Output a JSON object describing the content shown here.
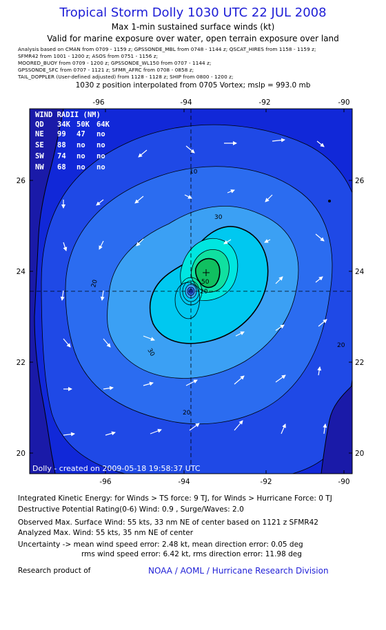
{
  "title": "Tropical Storm Dolly 1030 UTC 22 JUL 2008",
  "subtitle1": "Max 1-min sustained surface winds (kt)",
  "subtitle2": "Valid for marine exposure over water, open terrain exposure over land",
  "analysis_lines": [
    "Analysis based on  CMAN from 0709 - 1159 z;  GPSSONDE_MBL from 0748 - 1144 z;  QSCAT_HIRES from 1158 - 1159 z;",
    "SFMR42 from 1001 - 1200 z;  ASOS from 0751 - 1156 z;",
    "MOORED_BUOY from 0709 - 1200 z;  GPSSONDE_WL150 from 0707 - 1144 z;",
    "GPSSONDE_SFC from 0707 - 1121 z;  SFMR_AFRC from 0708 - 0858 z;",
    "TAIL_DOPPLER (User-defined adjusted) from 1128 - 1128 z;  SHIP from 0800 - 1200 z;"
  ],
  "position_line": "1030 z position interpolated from 0705 Vortex; mslp = 993.0 mb",
  "map": {
    "lon_ticks": [
      "-96",
      "-94",
      "-92",
      "-90"
    ],
    "lat_ticks": [
      "26",
      "24",
      "22",
      "20"
    ],
    "center": {
      "lon": -93.8,
      "lat": 23.58
    },
    "max_wind_marker": {
      "lon": -93.6,
      "lat": 24.0
    },
    "contour_labels": [
      "10",
      "30",
      "20",
      "30",
      "50",
      "20",
      "20",
      "20"
    ],
    "credit": "Dolly - created on 2009-05-18 19:58:37 UTC",
    "wind_radii": {
      "title": "WIND RADII (NM)",
      "header": [
        "QD",
        "34K",
        "50K",
        "64K"
      ],
      "rows": [
        [
          "NE",
          "99",
          "47",
          "no"
        ],
        [
          "SE",
          "88",
          "no",
          "no"
        ],
        [
          "SW",
          "74",
          "no",
          "no"
        ],
        [
          "NW",
          "68",
          "no",
          "no"
        ]
      ]
    },
    "colors": {
      "deep": "#1128d8",
      "c10": "#1f49e6",
      "c20": "#2b6cf0",
      "c30": "#3ba0f4",
      "c40": "#00c8f0",
      "c50": "#00e6e0",
      "c60": "#10e0a0",
      "c70": "#10c060",
      "land": "#1a1aa8"
    }
  },
  "footer": {
    "ike": "Integrated Kinetic Energy:  for Winds > TS force: 9 TJ,  for Winds > Hurricane Force: 0 TJ",
    "dpr": "Destructive Potential Rating(0-6)   Wind: 0.9 , Surge/Waves: 2.0",
    "obs": "Observed Max. Surface Wind: 55 kts, 33 nm NE of center based on 1121 z SFMR42",
    "analyzed": "Analyzed Max. Wind: 55 kts, 35 nm NE of center",
    "uncert1": "Uncertainty -> mean wind speed error: 2.48 kt,   mean direction error: 0.05 deg",
    "uncert2": "rms wind speed error: 6.42 kt,   rms direction error: 11.98 deg",
    "research": "Research product of",
    "org": "NOAA / AOML / Hurricane Research Division"
  }
}
